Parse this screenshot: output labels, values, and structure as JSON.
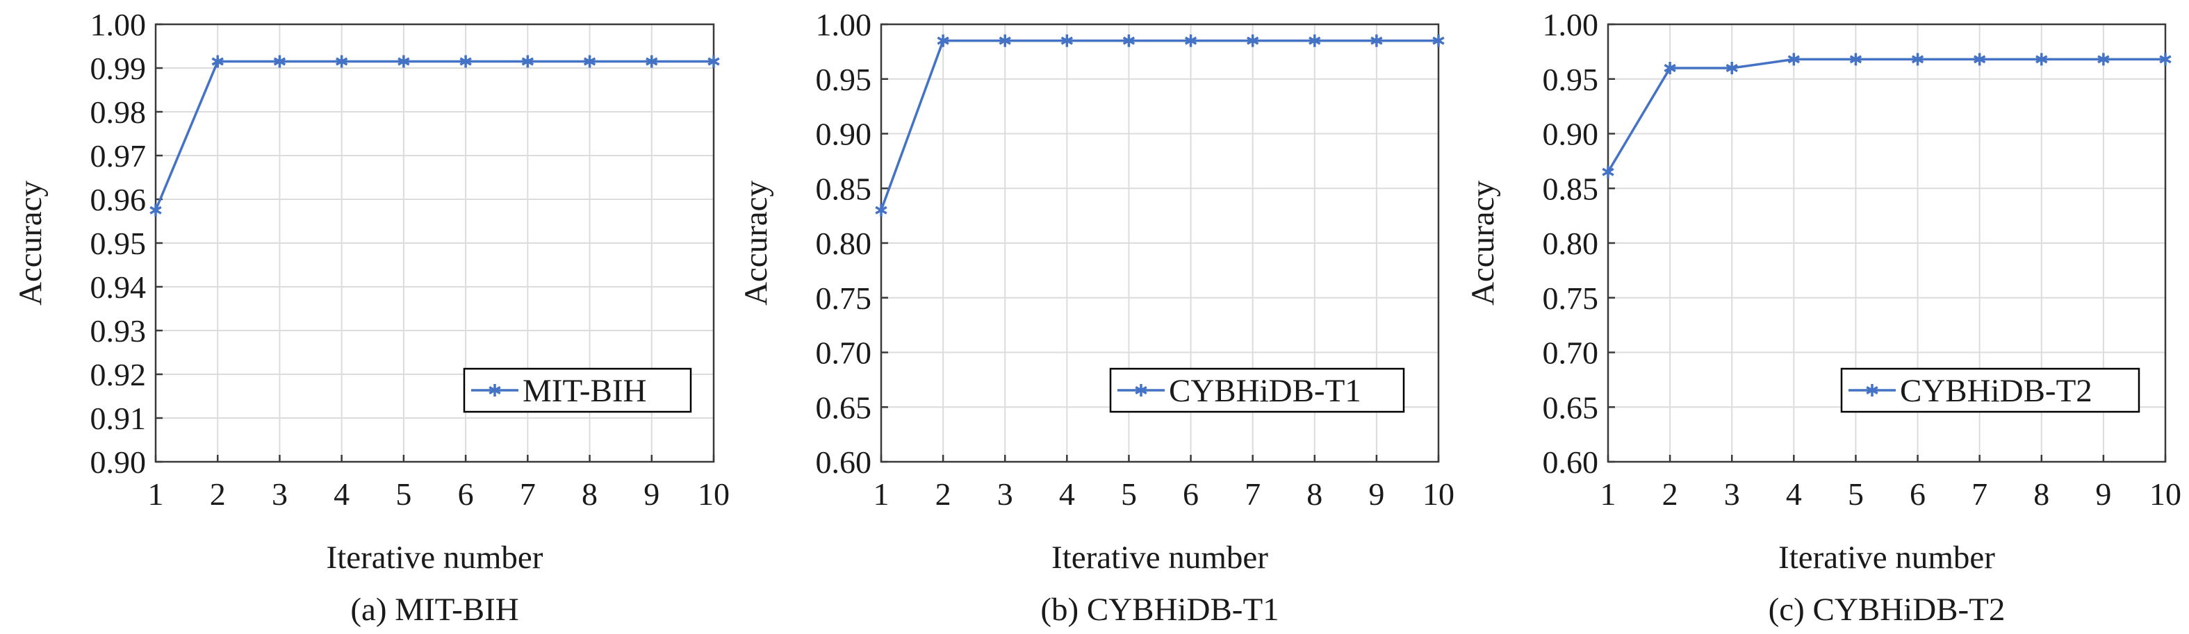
{
  "colors": {
    "series": "#4472c4"
  },
  "chart_data": [
    {
      "type": "line",
      "caption": "(a) MIT-BIH",
      "xlabel": "Iterative number",
      "ylabel": "Accuracy",
      "x": [
        1,
        2,
        3,
        4,
        5,
        6,
        7,
        8,
        9,
        10
      ],
      "xticks": [
        "1",
        "2",
        "3",
        "4",
        "5",
        "6",
        "7",
        "8",
        "9",
        "10"
      ],
      "ylim": [
        0.9,
        1.0
      ],
      "yticks": [
        "0.90",
        "0.91",
        "0.92",
        "0.93",
        "0.94",
        "0.95",
        "0.96",
        "0.97",
        "0.98",
        "0.99",
        "1.00"
      ],
      "grid": true,
      "legend_position": "bottom-right",
      "series": [
        {
          "name": "MIT-BIH",
          "marker": "star",
          "values": [
            0.9575,
            0.9915,
            0.9915,
            0.9915,
            0.9915,
            0.9915,
            0.9915,
            0.9915,
            0.9915,
            0.9915
          ]
        }
      ]
    },
    {
      "type": "line",
      "caption": "(b) CYBHiDB-T1",
      "xlabel": "Iterative number",
      "ylabel": "Accuracy",
      "x": [
        1,
        2,
        3,
        4,
        5,
        6,
        7,
        8,
        9,
        10
      ],
      "xticks": [
        "1",
        "2",
        "3",
        "4",
        "5",
        "6",
        "7",
        "8",
        "9",
        "10"
      ],
      "ylim": [
        0.6,
        1.0
      ],
      "yticks": [
        "0.60",
        "0.65",
        "0.70",
        "0.75",
        "0.80",
        "0.85",
        "0.90",
        "0.95",
        "1.00"
      ],
      "grid": true,
      "legend_position": "bottom-right",
      "series": [
        {
          "name": "CYBHiDB-T1",
          "marker": "star",
          "values": [
            0.83,
            0.985,
            0.985,
            0.985,
            0.985,
            0.985,
            0.985,
            0.985,
            0.985,
            0.985
          ]
        }
      ]
    },
    {
      "type": "line",
      "caption": "(c) CYBHiDB-T2",
      "xlabel": "Iterative number",
      "ylabel": "Accuracy",
      "x": [
        1,
        2,
        3,
        4,
        5,
        6,
        7,
        8,
        9,
        10
      ],
      "xticks": [
        "1",
        "2",
        "3",
        "4",
        "5",
        "6",
        "7",
        "8",
        "9",
        "10"
      ],
      "ylim": [
        0.6,
        1.0
      ],
      "yticks": [
        "0.60",
        "0.65",
        "0.70",
        "0.75",
        "0.80",
        "0.85",
        "0.90",
        "0.95",
        "1.00"
      ],
      "grid": true,
      "legend_position": "bottom-right",
      "series": [
        {
          "name": "CYBHiDB-T2",
          "marker": "star",
          "values": [
            0.865,
            0.96,
            0.96,
            0.968,
            0.968,
            0.968,
            0.968,
            0.968,
            0.968,
            0.968
          ]
        }
      ]
    }
  ]
}
